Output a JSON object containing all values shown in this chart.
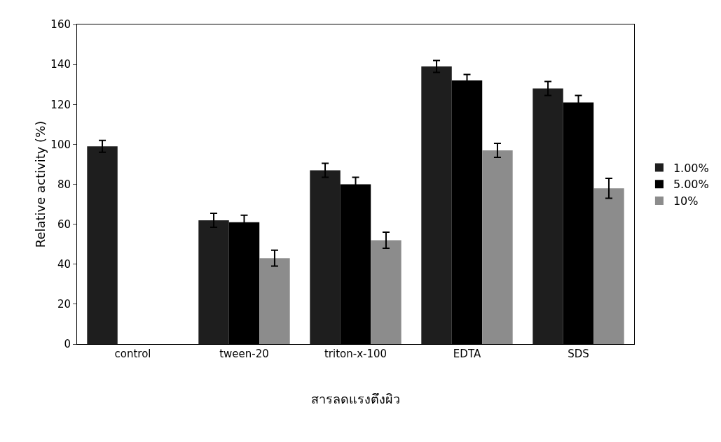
{
  "chart_data": {
    "type": "bar",
    "xlabel": "สารลดแรงตึงผิว",
    "ylabel": "Relative activity (%)",
    "categories": [
      "control",
      "tween-20",
      "triton-x-100",
      "EDTA",
      "SDS"
    ],
    "series": [
      {
        "name": "1.00%",
        "color": "#1e1e1e",
        "values": [
          99,
          62,
          87,
          139,
          128
        ],
        "errors": [
          3,
          3.5,
          3.5,
          3,
          3.5
        ]
      },
      {
        "name": "5.00%",
        "color": "#000000",
        "values": [
          null,
          61,
          80,
          132,
          121
        ],
        "errors": [
          null,
          3.5,
          3.5,
          3,
          3.5
        ]
      },
      {
        "name": "10%",
        "color": "#8c8c8c",
        "values": [
          null,
          43,
          52,
          97,
          78
        ],
        "errors": [
          null,
          4,
          4,
          3.5,
          5
        ]
      }
    ],
    "ylim": [
      0,
      160
    ],
    "yticks": [
      0,
      20,
      40,
      60,
      80,
      100,
      120,
      140,
      160
    ],
    "grid": false,
    "legend": "right"
  }
}
